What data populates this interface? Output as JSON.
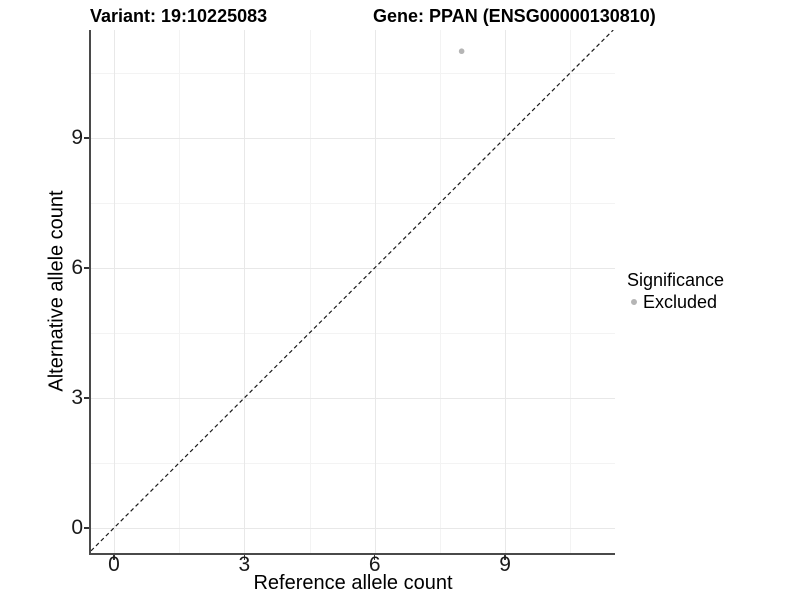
{
  "titles": {
    "left": "Variant: 19:10225083",
    "right": "Gene: PPAN (ENSG00000130810)"
  },
  "chart_data": {
    "type": "scatter",
    "title": "Variant: 19:10225083   Gene: PPAN (ENSG00000130810)",
    "xlabel": "Reference allele count",
    "ylabel": "Alternative allele count",
    "xlim": [
      -0.53,
      11.53
    ],
    "ylim": [
      -0.58,
      11.49
    ],
    "xticks": [
      0,
      3,
      6,
      9
    ],
    "yticks": [
      0,
      3,
      6,
      9
    ],
    "xminor": [
      1.5,
      4.5,
      7.5,
      10.5
    ],
    "yminor": [
      1.5,
      4.5,
      7.5,
      10.5
    ],
    "grid": "major-and-minor",
    "points": [
      {
        "x": 8,
        "y": 11,
        "significance": "Excluded"
      }
    ],
    "ref_line": {
      "slope": 1,
      "intercept": 0,
      "style": "dashed"
    },
    "legend_position": "right"
  },
  "legend": {
    "title": "Significance",
    "items": [
      {
        "label": "Excluded",
        "color": "#b5b5b5"
      }
    ]
  },
  "colors": {
    "background": "#ffffff",
    "grid_major": "#e8e8e8",
    "grid_minor": "#f3f3f3",
    "axis_line": "#4a4a4a",
    "tick_mark": "#333333",
    "point": "#b5b5b5",
    "ref_line": "#1a1a1a",
    "text": "#000000"
  }
}
